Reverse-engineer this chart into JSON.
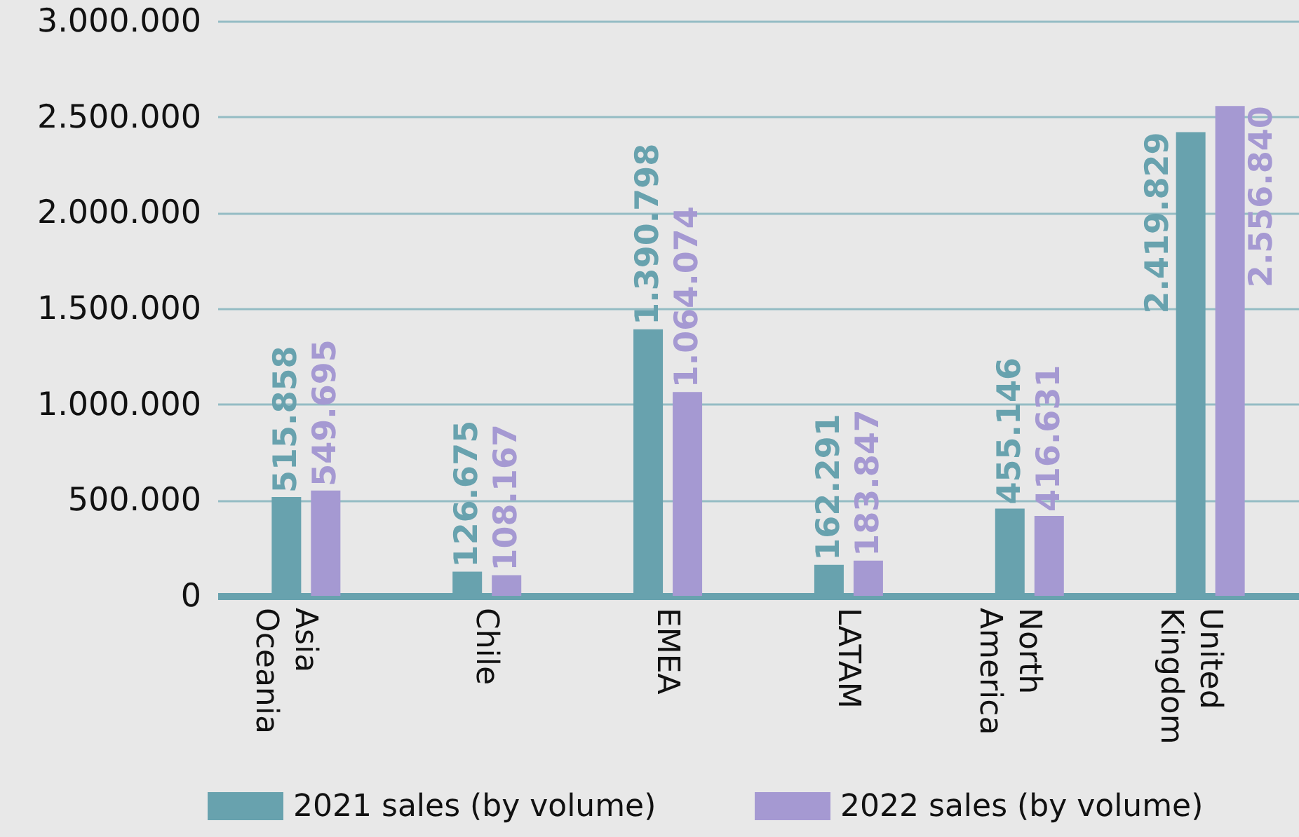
{
  "chart_data": {
    "type": "bar",
    "categories": [
      "Asia Oceania",
      "Chile",
      "EMEA",
      "LATAM",
      "North America",
      "United Kingdom"
    ],
    "series": [
      {
        "name": "2021 sales (by volume)",
        "color": "#68a2ae",
        "values": [
          515858,
          126675,
          1390798,
          162291,
          455146,
          2419829
        ],
        "value_labels": [
          "515.858",
          "126.675",
          "1.390.798",
          "162.291",
          "455.146",
          "2.419.829"
        ]
      },
      {
        "name": "2022 sales (by volume)",
        "color": "#a599d2",
        "values": [
          549695,
          108167,
          1064074,
          183847,
          416631,
          2556840
        ],
        "value_labels": [
          "549.695",
          "108.167",
          "1.064.074",
          "183.847",
          "416.631",
          "2.556.840"
        ]
      }
    ],
    "ylim": [
      0,
      3000000
    ],
    "yticks": [
      0,
      {
        "value": 500000,
        "label": "500.000"
      },
      {
        "value": 1000000,
        "label": "1.000.000"
      },
      {
        "value": 1500000,
        "label": "1.500.000"
      },
      {
        "value": 2000000,
        "label": "2.000.000"
      },
      {
        "value": 2500000,
        "label": "2.500.000"
      },
      {
        "value": 3000000,
        "label": "3.000.000"
      }
    ],
    "grid": "y",
    "legend": "bottom"
  }
}
